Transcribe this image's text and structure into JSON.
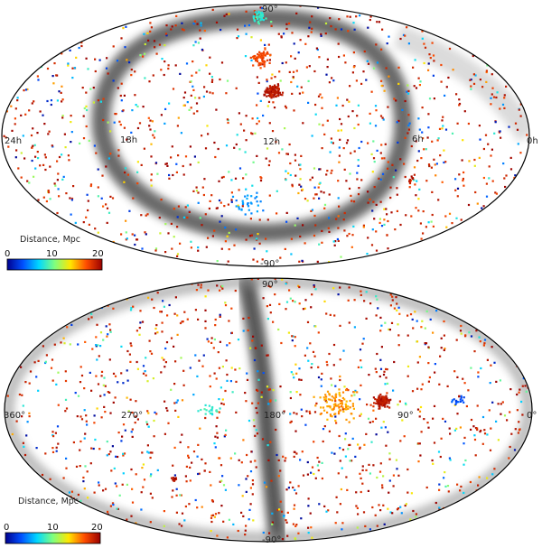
{
  "maps": [
    {
      "id": "equatorial",
      "projection": "Mollweide all-sky",
      "labels": {
        "top": "90°",
        "bottom": "-90°",
        "left_edge": "24h",
        "right_edge": "0h",
        "mid_left": "18h",
        "center": "12h",
        "mid_right": "6h"
      },
      "colorbar": {
        "title": "Distance, Mpc",
        "ticks": [
          "0",
          "10",
          "20"
        ],
        "range": [
          0,
          20
        ]
      },
      "band": "ring",
      "clusters": [
        {
          "lon": -5,
          "lat": 25,
          "n": 110,
          "spread": 6,
          "dist": 19
        },
        {
          "lon": 10,
          "lat": 75,
          "n": 45,
          "spread": 10,
          "dist": 8
        },
        {
          "lon": 5,
          "lat": 45,
          "n": 60,
          "spread": 8,
          "dist": 17
        },
        {
          "lon": -105,
          "lat": -25,
          "n": 12,
          "spread": 4,
          "dist": 19
        },
        {
          "lon": 15,
          "lat": -40,
          "n": 30,
          "spread": 12,
          "dist": 5
        }
      ]
    },
    {
      "id": "galactic",
      "projection": "Mollweide all-sky",
      "labels": {
        "top": "90°",
        "bottom": "-90°",
        "left_edge": "360°",
        "right_edge": "0°",
        "mid_left": "270°",
        "center": "180°",
        "mid_right": "90°"
      },
      "colorbar": {
        "title": "Distance, Mpc",
        "ticks": [
          "0",
          "10",
          "20"
        ],
        "range": [
          0,
          20
        ]
      },
      "band": "meridian",
      "clusters": [
        {
          "lon": -78,
          "lat": 5,
          "n": 110,
          "spread": 6,
          "dist": 19
        },
        {
          "lon": -45,
          "lat": 3,
          "n": 90,
          "spread": 14,
          "dist": 15
        },
        {
          "lon": 75,
          "lat": -40,
          "n": 12,
          "spread": 3,
          "dist": 19
        },
        {
          "lon": -130,
          "lat": 5,
          "n": 16,
          "spread": 5,
          "dist": 3
        },
        {
          "lon": 40,
          "lat": 0,
          "n": 20,
          "spread": 6,
          "dist": 8
        }
      ]
    }
  ],
  "colors": {
    "stops": [
      "#00008f",
      "#0050ff",
      "#00d8ff",
      "#7fff7f",
      "#ffe600",
      "#ff4d00",
      "#990000"
    ],
    "frame": "#000000",
    "band": "#555555"
  }
}
